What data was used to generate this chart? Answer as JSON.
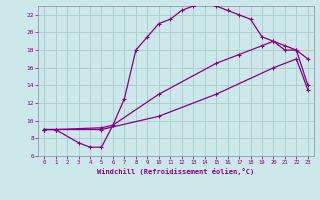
{
  "xlabel": "Windchill (Refroidissement éolien,°C)",
  "xlim": [
    -0.5,
    23.5
  ],
  "ylim": [
    6,
    23
  ],
  "xticks": [
    0,
    1,
    2,
    3,
    4,
    5,
    6,
    7,
    8,
    9,
    10,
    11,
    12,
    13,
    14,
    15,
    16,
    17,
    18,
    19,
    20,
    21,
    22,
    23
  ],
  "yticks": [
    6,
    8,
    10,
    12,
    14,
    16,
    18,
    20,
    22
  ],
  "bg_color": "#cce8ea",
  "grid_color": "#aacccc",
  "line_color": "#880088",
  "curve1_x": [
    0,
    1,
    3,
    4,
    5,
    6,
    7,
    8,
    9,
    10,
    11,
    12,
    13,
    14,
    15,
    16,
    17,
    18,
    19,
    20,
    21,
    22,
    23
  ],
  "curve1_y": [
    9.0,
    9.0,
    7.5,
    7.0,
    7.0,
    9.5,
    12.5,
    18.0,
    19.5,
    21.0,
    21.5,
    22.5,
    23.0,
    23.2,
    23.0,
    22.5,
    22.0,
    21.5,
    19.5,
    19.0,
    18.0,
    18.0,
    17.0
  ],
  "curve2_x": [
    0,
    1,
    5,
    6,
    10,
    15,
    17,
    19,
    20,
    21,
    22,
    23
  ],
  "curve2_y": [
    9.0,
    9.0,
    9.2,
    9.5,
    13.0,
    16.5,
    17.5,
    18.5,
    19.0,
    18.5,
    18.0,
    14.0
  ],
  "curve3_x": [
    0,
    1,
    5,
    10,
    15,
    20,
    22,
    23
  ],
  "curve3_y": [
    9.0,
    9.0,
    9.0,
    10.5,
    13.0,
    16.0,
    17.0,
    13.5
  ]
}
